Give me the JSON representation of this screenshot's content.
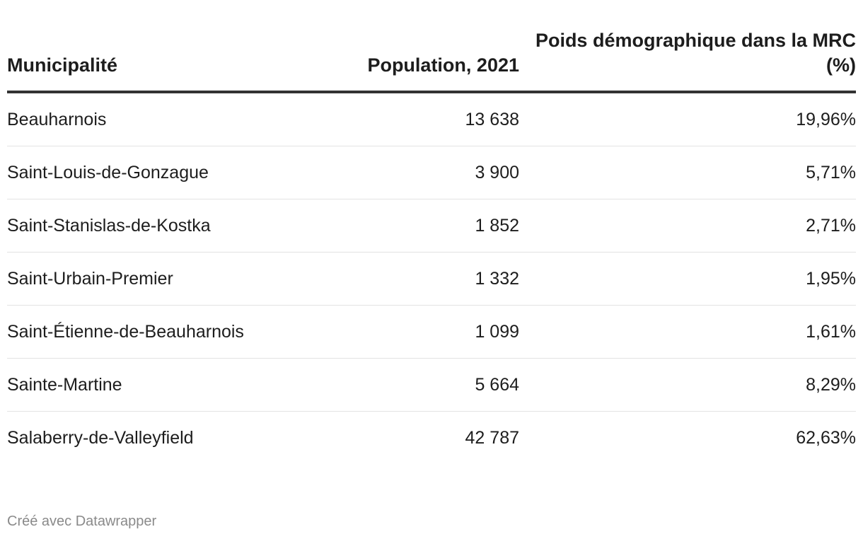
{
  "chart_data": {
    "type": "table",
    "columns": [
      "Municipalité",
      "Population, 2021",
      "Poids démographique dans la MRC (%)"
    ],
    "rows": [
      {
        "municipalite": "Beauharnois",
        "population": "13 638",
        "poids": "19,96%"
      },
      {
        "municipalite": "Saint-Louis-de-Gonzague",
        "population": "3 900",
        "poids": "5,71%"
      },
      {
        "municipalite": "Saint-Stanislas-de-Kostka",
        "population": "1 852",
        "poids": "2,71%"
      },
      {
        "municipalite": "Saint-Urbain-Premier",
        "population": "1 332",
        "poids": "1,95%"
      },
      {
        "municipalite": "Saint-Étienne-de-Beauharnois",
        "population": "1 099",
        "poids": "1,61%"
      },
      {
        "municipalite": "Sainte-Martine",
        "population": "5 664",
        "poids": "8,29%"
      },
      {
        "municipalite": "Salaberry-de-Valleyfield",
        "population": "42 787",
        "poids": "62,63%"
      }
    ]
  },
  "footer": {
    "credit": "Créé avec Datawrapper"
  }
}
